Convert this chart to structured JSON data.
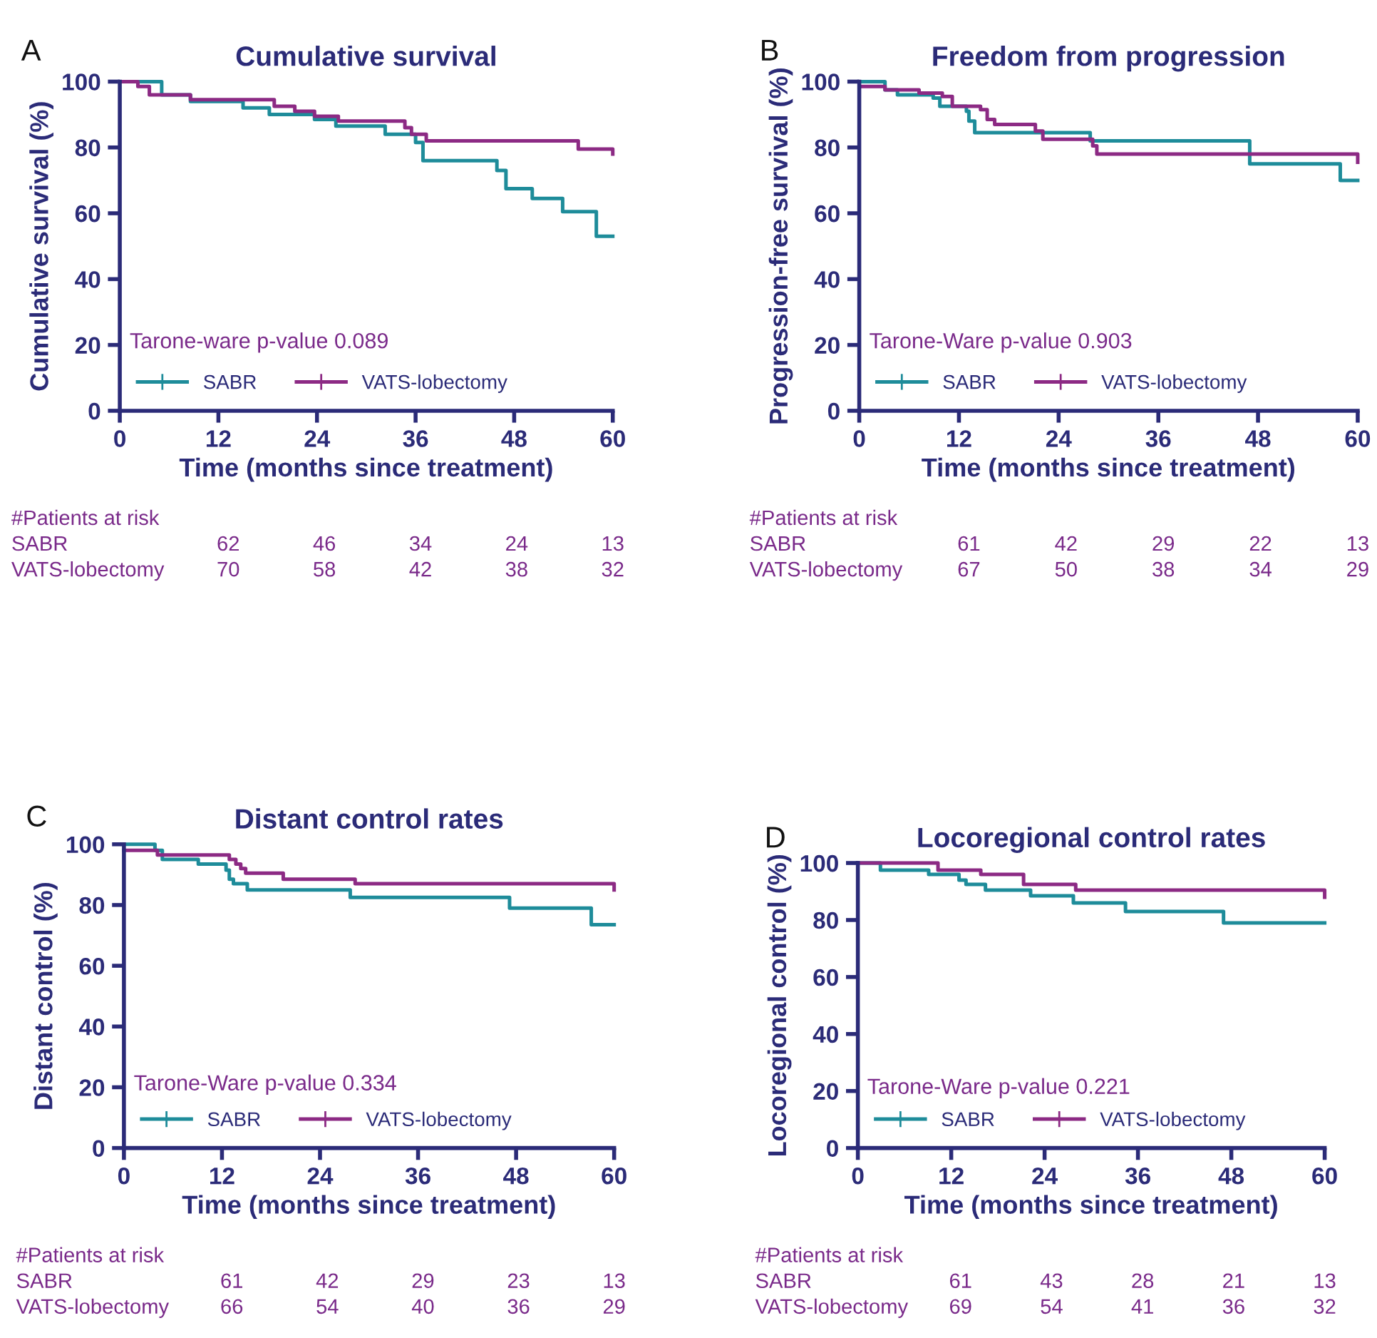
{
  "chart_data": [
    {
      "type": "step",
      "title": "Cumulative survival",
      "xlabel": "Time (months since treatment)",
      "ylabel": "Cumulative survival (%)",
      "xlim": [
        0,
        60
      ],
      "ylim": [
        0,
        100
      ],
      "xticks": [
        0,
        12,
        24,
        36,
        48,
        60
      ],
      "yticks": [
        0,
        20,
        40,
        60,
        80,
        100
      ],
      "grid": false,
      "legend": "bottom left",
      "marker": "none",
      "line_style": "solid",
      "annotations": [
        "A",
        "Tarone-ware p-value 0.089",
        "#Patients at risk",
        "SABR",
        "62",
        "46",
        "34",
        "24",
        "13",
        "VATS-lobectomy",
        "70",
        "58",
        "42",
        "38",
        "32"
      ],
      "series": [
        {
          "name": "SABR",
          "color": "#1e8c9a",
          "x": [
            0,
            5.1,
            8.6,
            15,
            18.2,
            23.7,
            26.3,
            32.3,
            36,
            36.9,
            45.9,
            47,
            50.2,
            53.9,
            58,
            60
          ],
          "values": [
            100,
            96,
            94,
            92,
            90,
            88.5,
            86.5,
            84,
            81.5,
            76,
            73,
            67.5,
            64.5,
            60.5,
            53,
            53
          ]
        },
        {
          "name": "VATS-lobectomy",
          "color": "#8c2a84",
          "x": [
            0,
            2.2,
            3.6,
            8.6,
            18.8,
            21.3,
            23.7,
            26.6,
            34.7,
            35.5,
            37.3,
            55.8,
            60
          ],
          "values": [
            100,
            98.5,
            96,
            94.5,
            92.5,
            91,
            89.5,
            88,
            86,
            84,
            82,
            79.5,
            78
          ]
        }
      ]
    },
    {
      "type": "step",
      "title": "Freedom from progression",
      "xlabel": "Time (months since treatment)",
      "ylabel": "Progression-free survival (%)",
      "xlim": [
        0,
        60
      ],
      "ylim": [
        0,
        100
      ],
      "xticks": [
        0,
        12,
        24,
        36,
        48,
        60
      ],
      "yticks": [
        0,
        20,
        40,
        60,
        80,
        100
      ],
      "grid": false,
      "legend": "bottom left",
      "marker": "none",
      "line_style": "solid",
      "annotations": [
        "B",
        "Tarone-Ware p-value 0.903",
        "#Patients at risk",
        "SABR",
        "61",
        "42",
        "29",
        "22",
        "13",
        "VATS-lobectomy",
        "67",
        "50",
        "38",
        "34",
        "29"
      ],
      "series": [
        {
          "name": "SABR",
          "color": "#1e8c9a",
          "x": [
            0,
            3.1,
            4.6,
            8.9,
            9.7,
            12.9,
            13.2,
            13.9,
            27.8,
            47,
            57.9,
            60
          ],
          "values": [
            100,
            97.5,
            96,
            95,
            92.5,
            91,
            88,
            84.5,
            82,
            75,
            70,
            70
          ]
        },
        {
          "name": "VATS-lobectomy",
          "color": "#8c2a84",
          "x": [
            0,
            3.1,
            7.2,
            10,
            11.2,
            14.6,
            15.4,
            16.3,
            21.2,
            22.1,
            28.1,
            28.6,
            60
          ],
          "values": [
            98.5,
            97.5,
            96.5,
            95.5,
            92.5,
            91.5,
            88.5,
            87,
            85,
            82.5,
            80.5,
            78,
            75.5
          ]
        }
      ]
    },
    {
      "type": "step",
      "title": "Distant control rates",
      "xlabel": "Time (months since treatment)",
      "ylabel": "Distant control (%)",
      "xlim": [
        0,
        60
      ],
      "ylim": [
        0,
        100
      ],
      "xticks": [
        0,
        12,
        24,
        36,
        48,
        60
      ],
      "yticks": [
        0,
        20,
        40,
        60,
        80,
        100
      ],
      "grid": false,
      "legend": "bottom left",
      "marker": "none",
      "line_style": "solid",
      "annotations": [
        "C",
        "Tarone-Ware p-value 0.334",
        "#Patients at risk",
        "SABR",
        "61",
        "42",
        "29",
        "23",
        "13",
        "VATS-lobectomy",
        "66",
        "54",
        "40",
        "36",
        "29"
      ],
      "series": [
        {
          "name": "SABR",
          "color": "#1e8c9a",
          "x": [
            0,
            3.8,
            4.7,
            9.1,
            12.5,
            12.9,
            13.4,
            15.1,
            27.7,
            47.2,
            57.2,
            60
          ],
          "values": [
            100,
            98,
            95,
            93.5,
            91.5,
            88.5,
            87,
            85,
            82.5,
            79,
            73.5,
            73.5
          ]
        },
        {
          "name": "VATS-lobectomy",
          "color": "#8c2a84",
          "x": [
            0,
            4.1,
            12.9,
            13.7,
            14.3,
            14.9,
            19.5,
            28.3,
            60
          ],
          "values": [
            98,
            96.5,
            95,
            93.5,
            92,
            90.5,
            88.5,
            87,
            85
          ]
        }
      ]
    },
    {
      "type": "step",
      "title": "Locoregional control rates",
      "xlabel": "Time (months since treatment)",
      "ylabel": "Locoregional control (%)",
      "xlim": [
        0,
        60
      ],
      "ylim": [
        0,
        100
      ],
      "xticks": [
        0,
        12,
        24,
        36,
        48,
        60
      ],
      "yticks": [
        0,
        20,
        40,
        60,
        80,
        100
      ],
      "grid": false,
      "legend": "bottom left",
      "marker": "none",
      "line_style": "solid",
      "annotations": [
        "D",
        "Tarone-Ware p-value 0.221",
        "#Patients at risk",
        "SABR",
        "61",
        "43",
        "28",
        "21",
        "13",
        "VATS-lobectomy",
        "69",
        "54",
        "41",
        "36",
        "32"
      ],
      "series": [
        {
          "name": "SABR",
          "color": "#1e8c9a",
          "x": [
            0,
            2.9,
            9.1,
            13,
            13.9,
            16.4,
            22.2,
            27.7,
            34.4,
            47,
            60
          ],
          "values": [
            100,
            97.5,
            96,
            94,
            92.5,
            90.5,
            88.5,
            86,
            83,
            79,
            79
          ]
        },
        {
          "name": "VATS-lobectomy",
          "color": "#8c2a84",
          "x": [
            0,
            10.3,
            15.8,
            21.3,
            28,
            60
          ],
          "values": [
            100,
            97.5,
            96,
            92.5,
            90.5,
            88
          ]
        }
      ]
    }
  ]
}
